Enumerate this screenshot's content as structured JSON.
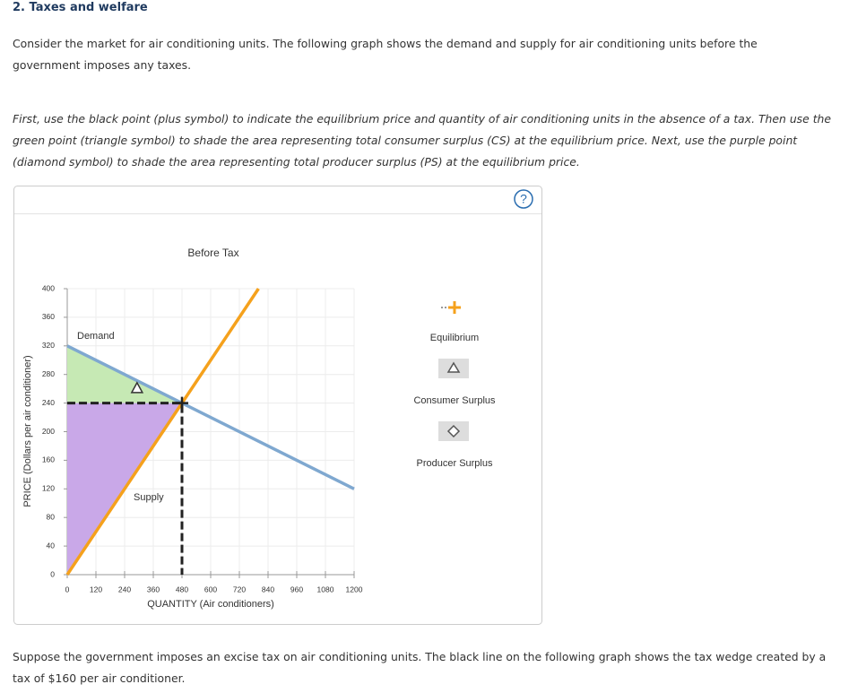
{
  "header": {
    "title": "2. Taxes and welfare"
  },
  "intro": "Consider the market for air conditioning units. The following graph shows the demand and supply for air conditioning units before the government imposes any taxes.",
  "instructions": "First, use the black point (plus symbol) to indicate the equilibrium price and quantity of air conditioning units in the absence of a tax. Then use the green point (triangle symbol) to shade the area representing total consumer surplus (CS) at the equilibrium price. Next, use the purple point (diamond symbol) to shade the area representing total producer surplus (PS) at the equilibrium price.",
  "help": "?",
  "outro": "Suppose the government imposes an excise tax on air conditioning units. The black line on the following graph shows the tax wedge created by a tax of $160 per air conditioner.",
  "chart_data": {
    "type": "line",
    "title": "Before Tax",
    "x_label": "QUANTITY (Air conditioners)",
    "y_label": "PRICE (Dollars per air conditioner)",
    "xlim": [
      0,
      1200
    ],
    "xticks": [
      0,
      120,
      240,
      360,
      480,
      600,
      720,
      840,
      960,
      1080,
      1200
    ],
    "ylim": [
      0,
      400
    ],
    "yticks": [
      0,
      40,
      80,
      120,
      160,
      200,
      240,
      280,
      320,
      360,
      400
    ],
    "grid": true,
    "series": [
      {
        "name": "Demand",
        "color": "#7fa8d0",
        "x": [
          0,
          1200
        ],
        "values": [
          320,
          120
        ]
      },
      {
        "name": "Supply",
        "color": "#f5a11c",
        "x": [
          0,
          800
        ],
        "values": [
          0,
          400
        ]
      }
    ],
    "areas": [
      {
        "name": "Consumer Surplus",
        "color": "#c6e9b4",
        "x": [
          0,
          0,
          480
        ],
        "values": [
          320,
          240,
          240
        ]
      },
      {
        "name": "Producer Surplus",
        "color": "#c9a8e8",
        "x": [
          0,
          480,
          0
        ],
        "values": [
          240,
          240,
          0
        ]
      }
    ],
    "points": [
      {
        "name": "Equilibrium",
        "x": 480,
        "value": 240,
        "symbol": "plus"
      }
    ],
    "markers": [
      {
        "x": 292,
        "value": 261,
        "symbol": "triangle"
      }
    ]
  }
}
